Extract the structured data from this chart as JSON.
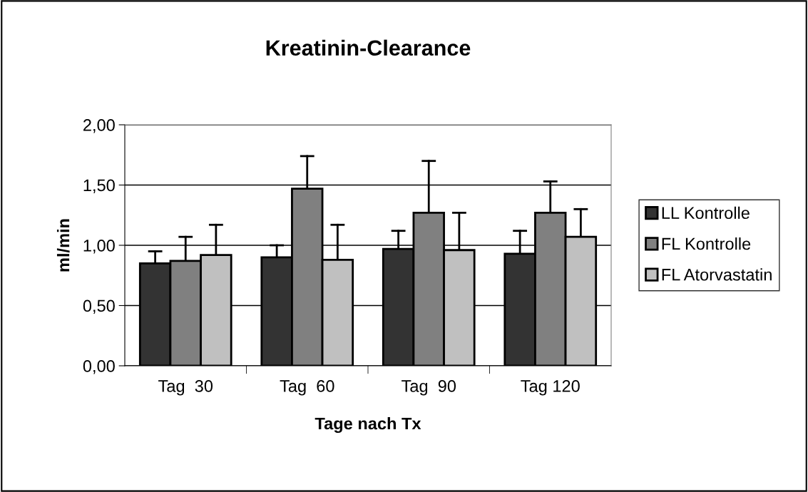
{
  "chart_data": {
    "type": "bar",
    "title": "Kreatinin-Clearance",
    "xlabel": "Tage nach Tx",
    "ylabel": "ml/min",
    "categories": [
      "Tag  30",
      "Tag  60",
      "Tag  90",
      "Tag 120"
    ],
    "series": [
      {
        "name": "LL Kontrolle",
        "color": "#333333",
        "values": [
          0.85,
          0.9,
          0.97,
          0.93
        ],
        "errors": [
          [
            0.85,
            0.95
          ],
          [
            0.9,
            1.0
          ],
          [
            0.97,
            1.12
          ],
          [
            0.93,
            1.12
          ]
        ]
      },
      {
        "name": "FL Kontrolle",
        "color": "#808080",
        "values": [
          0.87,
          1.47,
          1.27,
          1.27
        ],
        "errors": [
          [
            0.87,
            1.07
          ],
          [
            1.47,
            1.74
          ],
          [
            1.27,
            1.7
          ],
          [
            1.27,
            1.53
          ]
        ]
      },
      {
        "name": "FL Atorvastatin",
        "color": "#c0c0c0",
        "values": [
          0.92,
          0.88,
          0.96,
          1.07
        ],
        "errors": [
          [
            0.92,
            1.17
          ],
          [
            0.88,
            1.17
          ],
          [
            0.96,
            1.27
          ],
          [
            1.07,
            1.3
          ]
        ]
      }
    ],
    "ylim": [
      0,
      2
    ],
    "yticks": [
      {
        "value": 0,
        "label": "0,00"
      },
      {
        "value": 0.5,
        "label": "0,50"
      },
      {
        "value": 1,
        "label": "1,00"
      },
      {
        "value": 1.5,
        "label": "1,50"
      },
      {
        "value": 2,
        "label": "2,00"
      }
    ],
    "grid": "y",
    "legend": "right"
  }
}
